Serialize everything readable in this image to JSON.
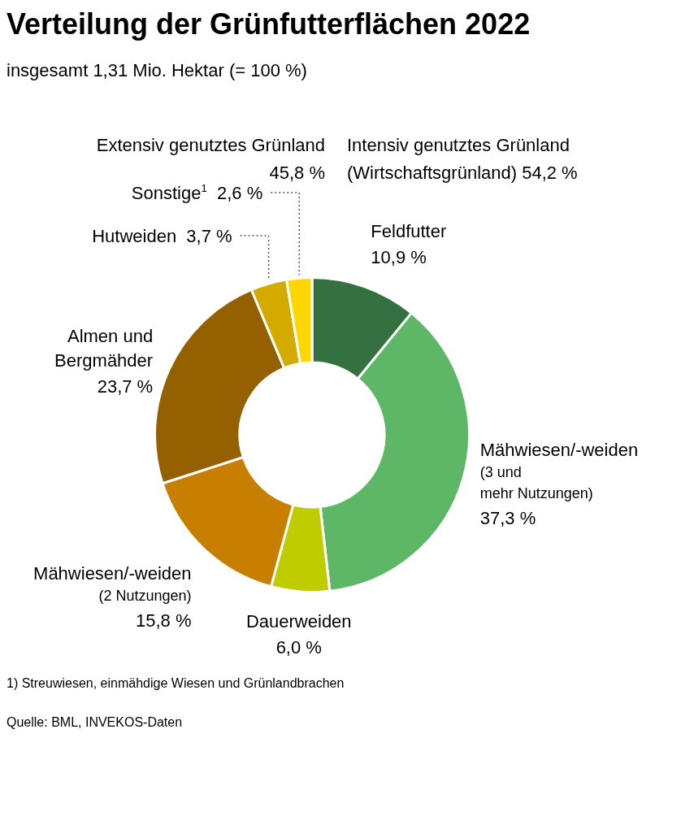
{
  "chart_data": {
    "type": "donut",
    "title": "Verteilung der Grünfutterflächen 2022",
    "subtitle": "insgesamt 1,31 Mio. Hektar (= 100 %)",
    "categories": [
      "Feldfutter",
      "Mähwiesen/-weiden (3 und mehr Nutzungen)",
      "Dauerweiden",
      "Mähwiesen/-weiden (2 Nutzungen)",
      "Almen und Bergmähder",
      "Hutweiden",
      "Sonstige$^{1}$"
    ],
    "values": [
      10.9,
      37.3,
      6.0,
      15.8,
      23.7,
      3.7,
      2.6
    ],
    "value_labels": [
      "10,9 %",
      "37,3 %",
      "6,0 %",
      "15,8 %",
      "23,7 %",
      "3,7 %",
      "2,6 %"
    ],
    "colors": [
      "#357040",
      "#5db766",
      "#bfcc00",
      "#c87f00",
      "#956000",
      "#d4aa00",
      "#ffd700"
    ],
    "annotations": [
      "Extensiv genutztes Grünland 45,8 %",
      "Intensiv genutztes Grünland (Wirtschaftsgrünland) 54,2 %",
      "1) Streuwiesen, einmähdige Wiesen und Grünlandbrachen",
      "Quelle: BML, INVEKOS-Daten"
    ],
    "legend": false
  }
}
